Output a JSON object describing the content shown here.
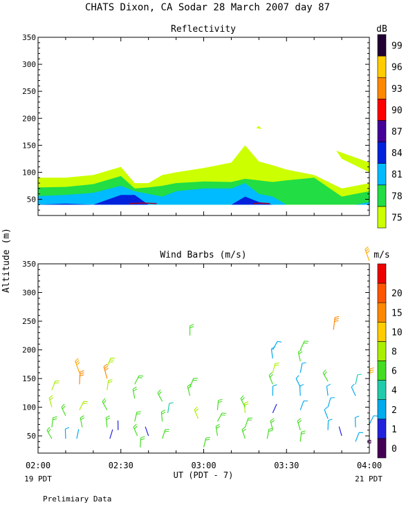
{
  "header": {
    "title": "CHATS Dixon, CA   Sodar  28 March 2007  day  87",
    "y_axis_label": "Altitude (m)",
    "x_axis_label": "UT  (PDT - 7)",
    "left_date": "19 PDT",
    "right_date": "21 PDT",
    "footer": "Prelimiary Data"
  },
  "chart_data": [
    {
      "type": "area",
      "title": "Reflectivity",
      "xlabel": "UT  (PDT - 7)",
      "ylabel": "Altitude (m)",
      "x_ticks": [
        "02:00",
        "02:30",
        "03:00",
        "03:30",
        "04:00"
      ],
      "xlim": [
        "02:00",
        "04:00"
      ],
      "ylim": [
        20,
        350
      ],
      "y_ticks": [
        50,
        100,
        150,
        200,
        250,
        300,
        350
      ],
      "colorbar": {
        "unit": "dB",
        "levels": [
          75,
          78,
          81,
          84,
          87,
          90,
          93,
          96,
          99
        ],
        "colors": [
          "#ccff00",
          "#22dd44",
          "#00bbff",
          "#0022dd",
          "#440099",
          "#ff0000",
          "#ff8800",
          "#ffcc00",
          "#220033"
        ]
      },
      "x_minutes": [
        0,
        10,
        20,
        30,
        35,
        40,
        45,
        50,
        60,
        70,
        75,
        80,
        85,
        90,
        100,
        110,
        115,
        120
      ],
      "contours": [
        {
          "level": 75,
          "top": [
            90,
            90,
            95,
            110,
            80,
            80,
            95,
            100,
            108,
            118,
            150,
            120,
            113,
            105,
            95,
            70,
            75,
            80
          ]
        },
        {
          "level": 78,
          "top": [
            72,
            73,
            78,
            93,
            70,
            72,
            75,
            80,
            83,
            82,
            88,
            85,
            82,
            85,
            90,
            55,
            60,
            65
          ]
        },
        {
          "level": 81,
          "top": [
            56,
            58,
            62,
            75,
            65,
            60,
            55,
            65,
            70,
            70,
            80,
            60,
            55,
            40,
            40,
            40,
            40,
            45
          ]
        },
        {
          "level": 84,
          "top": [
            40,
            42,
            40,
            58,
            58,
            40,
            40,
            40,
            40,
            40,
            55,
            45,
            40,
            40,
            40,
            40,
            40,
            40
          ]
        }
      ],
      "extra_patches": [
        {
          "level": 75,
          "x_minutes": [
            108,
            110,
            120,
            120
          ],
          "alt": [
            140,
            125,
            100,
            118
          ]
        },
        {
          "level": 75,
          "x_minutes": [
            79,
            80,
            81
          ],
          "alt": [
            182,
            186,
            180
          ]
        }
      ]
    },
    {
      "type": "scatter",
      "title": "Wind Barbs (m/s)",
      "xlabel": "UT  (PDT - 7)",
      "ylabel": "Altitude (m)",
      "x_ticks": [
        "02:00",
        "02:30",
        "03:00",
        "03:30",
        "04:00"
      ],
      "xlim": [
        "02:00",
        "04:00"
      ],
      "ylim": [
        20,
        350
      ],
      "y_ticks": [
        50,
        100,
        150,
        200,
        250,
        300,
        350
      ],
      "colorbar": {
        "unit": "m/s",
        "levels": [
          0,
          1,
          2,
          4,
          6,
          8,
          10,
          15,
          20
        ],
        "colors": [
          "#440055",
          "#2222dd",
          "#00aaee",
          "#22ccaa",
          "#44dd22",
          "#aaee00",
          "#ffcc00",
          "#ff8800",
          "#ff5500",
          "#ee0000"
        ]
      },
      "barbs": [
        {
          "t": 5,
          "alt": 45,
          "speed": 5
        },
        {
          "t": 5,
          "alt": 65,
          "speed": 6
        },
        {
          "t": 5,
          "alt": 100,
          "speed": 7
        },
        {
          "t": 5,
          "alt": 130,
          "speed": 7
        },
        {
          "t": 10,
          "alt": 45,
          "speed": 3
        },
        {
          "t": 10,
          "alt": 85,
          "speed": 6
        },
        {
          "t": 14,
          "alt": 45,
          "speed": 2
        },
        {
          "t": 16,
          "alt": 65,
          "speed": 6
        },
        {
          "t": 15,
          "alt": 95,
          "speed": 7
        },
        {
          "t": 15,
          "alt": 140,
          "speed": 12
        },
        {
          "t": 15,
          "alt": 160,
          "speed": 9
        },
        {
          "t": 26,
          "alt": 45,
          "speed": 1
        },
        {
          "t": 25,
          "alt": 65,
          "speed": 5
        },
        {
          "t": 25,
          "alt": 95,
          "speed": 6
        },
        {
          "t": 25,
          "alt": 130,
          "speed": 7
        },
        {
          "t": 25,
          "alt": 150,
          "speed": 11
        },
        {
          "t": 25,
          "alt": 170,
          "speed": 8
        },
        {
          "t": 29,
          "alt": 60,
          "speed": 1
        },
        {
          "t": 36,
          "alt": 50,
          "speed": 5
        },
        {
          "t": 35,
          "alt": 75,
          "speed": 5
        },
        {
          "t": 35,
          "alt": 115,
          "speed": 5
        },
        {
          "t": 35,
          "alt": 140,
          "speed": 5
        },
        {
          "t": 37,
          "alt": 30,
          "speed": 6
        },
        {
          "t": 40,
          "alt": 50,
          "speed": 1
        },
        {
          "t": 45,
          "alt": 45,
          "speed": 5
        },
        {
          "t": 45,
          "alt": 75,
          "speed": 5
        },
        {
          "t": 45,
          "alt": 110,
          "speed": 6
        },
        {
          "t": 47,
          "alt": 90,
          "speed": 4
        },
        {
          "t": 55,
          "alt": 120,
          "speed": 5
        },
        {
          "t": 55,
          "alt": 135,
          "speed": 6
        },
        {
          "t": 55,
          "alt": 225,
          "speed": 6
        },
        {
          "t": 58,
          "alt": 80,
          "speed": 7
        },
        {
          "t": 60,
          "alt": 30,
          "speed": 5
        },
        {
          "t": 65,
          "alt": 50,
          "speed": 5
        },
        {
          "t": 65,
          "alt": 75,
          "speed": 5
        },
        {
          "t": 65,
          "alt": 95,
          "speed": 5
        },
        {
          "t": 75,
          "alt": 45,
          "speed": 5
        },
        {
          "t": 75,
          "alt": 65,
          "speed": 5
        },
        {
          "t": 75,
          "alt": 90,
          "speed": 7
        },
        {
          "t": 75,
          "alt": 100,
          "speed": 6
        },
        {
          "t": 83,
          "alt": 45,
          "speed": 5
        },
        {
          "t": 85,
          "alt": 60,
          "speed": 5
        },
        {
          "t": 85,
          "alt": 90,
          "speed": 1
        },
        {
          "t": 85,
          "alt": 120,
          "speed": 3
        },
        {
          "t": 85,
          "alt": 140,
          "speed": 5
        },
        {
          "t": 85,
          "alt": 160,
          "speed": 7
        },
        {
          "t": 85,
          "alt": 185,
          "speed": 3
        },
        {
          "t": 85,
          "alt": 200,
          "speed": 3
        },
        {
          "t": 95,
          "alt": 40,
          "speed": 5
        },
        {
          "t": 95,
          "alt": 60,
          "speed": 5
        },
        {
          "t": 95,
          "alt": 95,
          "speed": 3
        },
        {
          "t": 95,
          "alt": 120,
          "speed": 3
        },
        {
          "t": 95,
          "alt": 135,
          "speed": 3
        },
        {
          "t": 95,
          "alt": 160,
          "speed": 3
        },
        {
          "t": 95,
          "alt": 180,
          "speed": 5
        },
        {
          "t": 95,
          "alt": 200,
          "speed": 5
        },
        {
          "t": 105,
          "alt": 60,
          "speed": 3
        },
        {
          "t": 105,
          "alt": 80,
          "speed": 3
        },
        {
          "t": 105,
          "alt": 100,
          "speed": 3
        },
        {
          "t": 105,
          "alt": 120,
          "speed": 3
        },
        {
          "t": 105,
          "alt": 145,
          "speed": 5
        },
        {
          "t": 107,
          "alt": 235,
          "speed": 11
        },
        {
          "t": 110,
          "alt": 50,
          "speed": 1
        },
        {
          "t": 115,
          "alt": 40,
          "speed": 3
        },
        {
          "t": 115,
          "alt": 65,
          "speed": 3
        },
        {
          "t": 115,
          "alt": 120,
          "speed": 3
        },
        {
          "t": 115,
          "alt": 140,
          "speed": 4
        },
        {
          "t": 120,
          "alt": 40,
          "speed": 0
        },
        {
          "t": 120,
          "alt": 70,
          "speed": 3
        },
        {
          "t": 120,
          "alt": 145,
          "speed": 10
        },
        {
          "t": 120,
          "alt": 355,
          "speed": 10
        }
      ]
    }
  ]
}
